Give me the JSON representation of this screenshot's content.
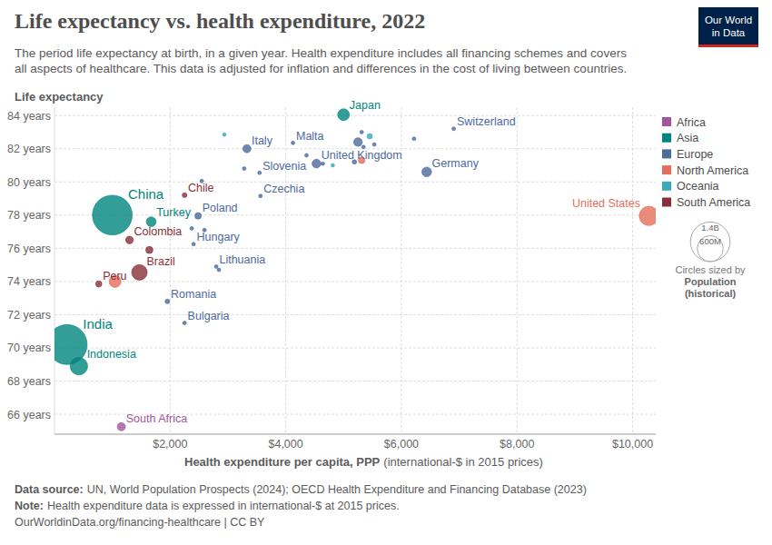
{
  "chart_data": {
    "type": "scatter",
    "title": "Life expectancy vs. health expenditure, 2022",
    "subtitle": [
      "The period life expectancy at birth, in a given year. Health expenditure includes all financing schemes and covers",
      "all aspects of healthcare. This data is adjusted for inflation and differences in the cost of living between countries."
    ],
    "logo": [
      "Our World",
      "in Data"
    ],
    "y_label": "Life expectancy",
    "x_label": "Health expenditure per capita, PPP",
    "x_label_note": "(international-$ in 2015 prices)",
    "xlim": [
      0,
      10400
    ],
    "ylim": [
      64.8,
      84.5
    ],
    "xticks": [
      {
        "value": 2000,
        "label": "$2,000"
      },
      {
        "value": 4000,
        "label": "$4,000"
      },
      {
        "value": 6000,
        "label": "$6,000"
      },
      {
        "value": 8000,
        "label": "$8,000"
      },
      {
        "value": 10000,
        "label": "$10,000"
      }
    ],
    "yticks": [
      {
        "value": 66,
        "label": "66 years"
      },
      {
        "value": 68,
        "label": "68 years"
      },
      {
        "value": 70,
        "label": "70 years"
      },
      {
        "value": 72,
        "label": "72 years"
      },
      {
        "value": 74,
        "label": "74 years"
      },
      {
        "value": 76,
        "label": "76 years"
      },
      {
        "value": 78,
        "label": "78 years"
      },
      {
        "value": 80,
        "label": "80 years"
      },
      {
        "value": 82,
        "label": "82 years"
      },
      {
        "value": 84,
        "label": "84 years"
      }
    ],
    "grid": true,
    "legend": "right",
    "series": [
      {
        "name": "Africa",
        "color": "#a2559c",
        "x": [
          1156
        ],
        "values": [
          65.25
        ],
        "size": [
          60000000
        ],
        "labels": [
          "South Africa"
        ]
      },
      {
        "name": "Asia",
        "color": "#00847e",
        "x": [
          1000,
          219,
          422,
          5000,
          1672
        ],
        "values": [
          78.0,
          70.2,
          68.9,
          84.05,
          77.6
        ],
        "size": [
          1412000000,
          1425000000,
          275000000,
          124000000,
          85000000
        ],
        "labels": [
          "China",
          "India",
          "Indonesia",
          "Japan",
          "Turkey"
        ]
      },
      {
        "name": "Europe",
        "color": "#4c6a9c",
        "x": [
          3328,
          4125,
          3547,
          4531,
          6438,
          6906,
          3563,
          2484,
          2406,
          2797,
          1953,
          2250,
          5313,
          5250,
          5531,
          5344,
          6219,
          4359,
          4641,
          5188,
          3281,
          2547,
          2375,
          2594,
          2844
        ],
        "values": [
          82.0,
          82.35,
          80.55,
          81.1,
          80.6,
          83.2,
          79.15,
          77.95,
          76.25,
          74.9,
          72.8,
          71.5,
          83.0,
          82.4,
          82.25,
          82.1,
          82.6,
          81.6,
          81.1,
          81.2,
          80.8,
          80.05,
          77.2,
          77.1,
          74.7
        ],
        "size": [
          59000000,
          530000,
          2100000,
          68000000,
          84000000,
          8800000,
          10500000,
          38000000,
          9600000,
          2800000,
          19000000,
          6500000,
          5500000,
          66000000,
          9000000,
          9000000,
          5500000,
          10000000,
          5000000,
          17500000,
          10400000,
          5400000,
          5400000,
          3800000,
          1900000
        ],
        "labels": [
          "Italy",
          "Malta",
          "Slovenia",
          "United Kingdom",
          "Germany",
          "Switzerland",
          "Czechia",
          "Poland",
          "Hungary",
          "Lithuania",
          "Romania",
          "Bulgaria",
          null,
          null,
          null,
          null,
          null,
          null,
          null,
          null,
          null,
          null,
          null,
          null,
          null
        ]
      },
      {
        "name": "North America",
        "color": "#e56e5a",
        "x": [
          10281,
          1047,
          5313
        ],
        "values": [
          77.95,
          74.0,
          81.3
        ],
        "size": [
          335000000,
          128000000,
          39000000
        ],
        "labels": [
          "United States",
          null,
          null
        ]
      },
      {
        "name": "Oceania",
        "color": "#38aaba",
        "x": [
          2938,
          5453,
          4813
        ],
        "values": [
          82.85,
          82.75,
          81.0
        ],
        "size": [
          5100000,
          26000000,
          5100000
        ],
        "labels": [
          null,
          null,
          null
        ]
      },
      {
        "name": "South America",
        "color": "#883039",
        "x": [
          2250,
          1297,
          1469,
          766,
          1641
        ],
        "values": [
          79.2,
          76.5,
          74.55,
          73.85,
          75.9
        ],
        "size": [
          19600000,
          52000000,
          216000000,
          34000000,
          46000000
        ],
        "labels": [
          "Chile",
          "Colombia",
          "Brazil",
          "Peru",
          null
        ]
      }
    ],
    "size_legend": {
      "sizes": [
        {
          "value": 1400000000,
          "label": "1.4B"
        },
        {
          "value": 600000000,
          "label": "600M"
        }
      ],
      "title": "Circles sized by",
      "variable": "Population",
      "note": "(historical)"
    },
    "source_label": "Data source:",
    "source": "UN, World Population Prospects (2024); OECD Health Expenditure and Financing Database (2023)",
    "note_label": "Note:",
    "note": "Health expenditure data is expressed in international-$ at 2015 prices.",
    "url": "OurWorldinData.org/financing-healthcare | CC BY"
  }
}
